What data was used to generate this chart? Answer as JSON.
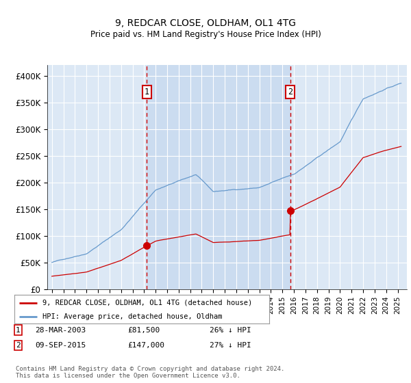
{
  "title": "9, REDCAR CLOSE, OLDHAM, OL1 4TG",
  "subtitle": "Price paid vs. HM Land Registry's House Price Index (HPI)",
  "plot_bg_color": "#dce8f5",
  "shade_color": "#c5d8ee",
  "grid_color": "#ffffff",
  "ylim": [
    0,
    420000
  ],
  "yticks": [
    0,
    50000,
    100000,
    150000,
    200000,
    250000,
    300000,
    350000,
    400000
  ],
  "ytick_labels": [
    "£0",
    "£50K",
    "£100K",
    "£150K",
    "£200K",
    "£250K",
    "£300K",
    "£350K",
    "£400K"
  ],
  "sale1_date": "28-MAR-2003",
  "sale1_price": 81500,
  "sale1_year": 2003.24,
  "sale1_label": "1",
  "sale2_date": "09-SEP-2015",
  "sale2_price": 147000,
  "sale2_year": 2015.69,
  "sale2_label": "2",
  "legend_label_red": "9, REDCAR CLOSE, OLDHAM, OL1 4TG (detached house)",
  "legend_label_blue": "HPI: Average price, detached house, Oldham",
  "footer": "Contains HM Land Registry data © Crown copyright and database right 2024.\nThis data is licensed under the Open Government Licence v3.0.",
  "red_color": "#cc0000",
  "blue_color": "#6699cc",
  "vline_color": "#cc0000",
  "box_color": "#cc0000",
  "sale1_pct": "26%",
  "sale2_pct": "27%"
}
